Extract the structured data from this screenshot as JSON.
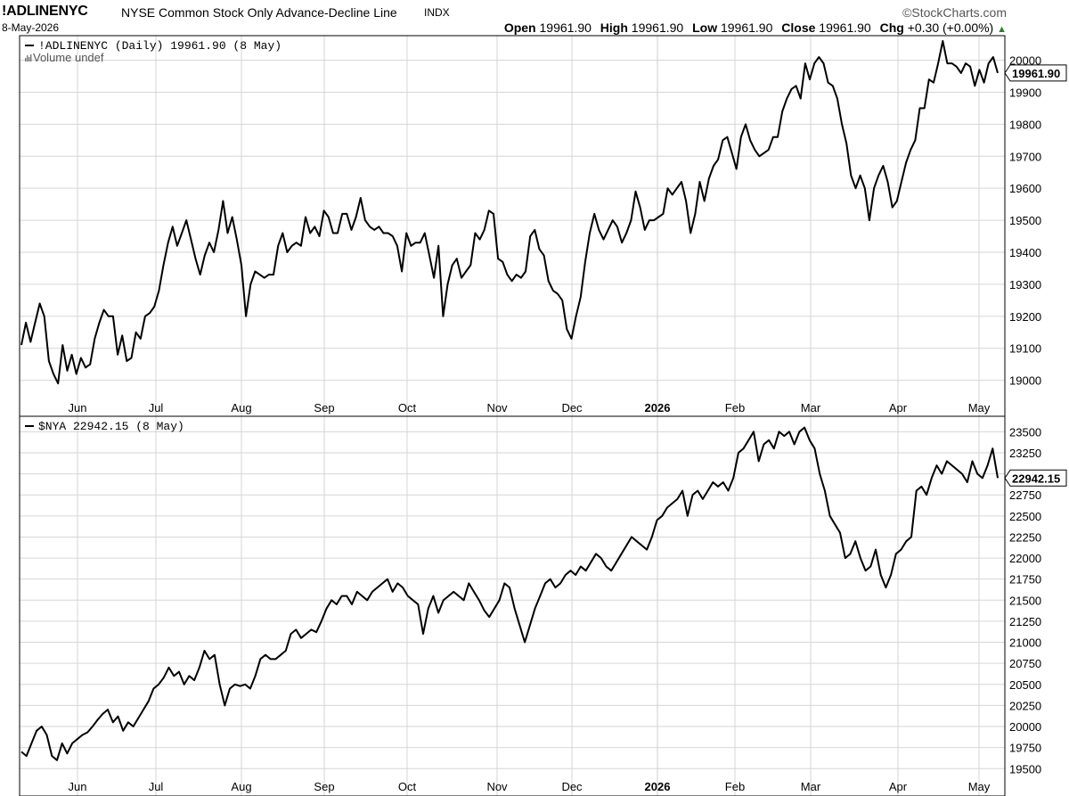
{
  "header": {
    "ticker": "!ADLINENYC",
    "description": "NYSE Common Stock Only Advance-Decline Line",
    "exchange": "INDX",
    "brand": "©StockCharts.com",
    "date": "8-May-2026",
    "open_label": "Open",
    "open": "19961.90",
    "high_label": "High",
    "high": "19961.90",
    "low_label": "Low",
    "low": "19961.90",
    "close_label": "Close",
    "close": "19961.90",
    "chg_label": "Chg",
    "chg": "+0.30 (+0.00%)",
    "chg_arrow": "▲"
  },
  "colors": {
    "line": "#000000",
    "grid": "#d6d6d6",
    "border": "#000000",
    "up": "#2e7d32"
  },
  "chart_data": [
    {
      "type": "line",
      "legend": "!ADLINENYC (Daily) 19961.90 (8 May)",
      "sublegend": "Volume undef",
      "last_value_label": "19961.90",
      "ylim": [
        18960,
        20060
      ],
      "yticks": [
        19000,
        19100,
        19200,
        19300,
        19400,
        19500,
        19600,
        19700,
        19800,
        19900,
        20000
      ],
      "xlabels": [
        "Jun",
        "Jul",
        "Aug",
        "Sep",
        "Oct",
        "Nov",
        "Dec",
        "2026",
        "Feb",
        "Mar",
        "Apr",
        "May"
      ],
      "grid": true,
      "values": [
        19110,
        19180,
        19120,
        19180,
        19240,
        19200,
        19060,
        19020,
        18990,
        19110,
        19030,
        19080,
        19020,
        19070,
        19040,
        19050,
        19130,
        19180,
        19220,
        19200,
        19200,
        19080,
        19140,
        19060,
        19070,
        19150,
        19130,
        19200,
        19210,
        19230,
        19280,
        19360,
        19430,
        19480,
        19420,
        19460,
        19500,
        19440,
        19380,
        19330,
        19390,
        19430,
        19400,
        19470,
        19560,
        19460,
        19510,
        19440,
        19360,
        19200,
        19300,
        19340,
        19330,
        19320,
        19330,
        19330,
        19420,
        19460,
        19400,
        19420,
        19430,
        19420,
        19510,
        19460,
        19480,
        19450,
        19530,
        19510,
        19460,
        19460,
        19520,
        19520,
        19470,
        19510,
        19570,
        19500,
        19480,
        19470,
        19480,
        19460,
        19460,
        19450,
        19420,
        19340,
        19460,
        19420,
        19430,
        19430,
        19460,
        19390,
        19320,
        19420,
        19200,
        19300,
        19360,
        19380,
        19320,
        19340,
        19360,
        19460,
        19440,
        19470,
        19530,
        19520,
        19380,
        19370,
        19330,
        19310,
        19330,
        19320,
        19340,
        19450,
        19470,
        19410,
        19390,
        19310,
        19280,
        19270,
        19250,
        19160,
        19130,
        19200,
        19260,
        19370,
        19460,
        19520,
        19470,
        19440,
        19470,
        19500,
        19480,
        19430,
        19460,
        19500,
        19590,
        19540,
        19470,
        19500,
        19500,
        19510,
        19520,
        19600,
        19580,
        19600,
        19620,
        19560,
        19460,
        19520,
        19620,
        19560,
        19630,
        19670,
        19690,
        19750,
        19760,
        19710,
        19660,
        19760,
        19800,
        19750,
        19720,
        19700,
        19710,
        19720,
        19760,
        19760,
        19840,
        19880,
        19910,
        19920,
        19880,
        19990,
        19940,
        19990,
        20010,
        19990,
        19930,
        19920,
        19880,
        19800,
        19740,
        19640,
        19600,
        19640,
        19600,
        19500,
        19600,
        19640,
        19670,
        19620,
        19540,
        19560,
        19620,
        19680,
        19720,
        19750,
        19850,
        19850,
        19940,
        19930,
        19990,
        20060,
        19990,
        19990,
        19980,
        19960,
        19990,
        19980,
        19920,
        19970,
        19930,
        19990,
        20010,
        19960
      ]
    },
    {
      "type": "line",
      "legend": "$NYA 22942.15 (8 May)",
      "last_value_label": "22942.15",
      "ylim": [
        19450,
        23620
      ],
      "yticks": [
        19500,
        19750,
        20000,
        20250,
        20500,
        20750,
        21000,
        21250,
        21500,
        21750,
        22000,
        22250,
        22500,
        22750,
        23000,
        23250,
        23500
      ],
      "xlabels": [
        "Jun",
        "Jul",
        "Aug",
        "Sep",
        "Oct",
        "Nov",
        "Dec",
        "2026",
        "Feb",
        "Mar",
        "Apr",
        "May"
      ],
      "grid": true,
      "values": [
        19700,
        19650,
        19800,
        19950,
        20000,
        19900,
        19650,
        19600,
        19800,
        19680,
        19800,
        19850,
        19900,
        19930,
        20000,
        20080,
        20150,
        20200,
        20050,
        20120,
        19950,
        20050,
        20000,
        20100,
        20200,
        20300,
        20450,
        20500,
        20580,
        20700,
        20600,
        20650,
        20500,
        20600,
        20550,
        20700,
        20900,
        20800,
        20850,
        20500,
        20250,
        20450,
        20500,
        20480,
        20500,
        20450,
        20600,
        20800,
        20850,
        20800,
        20800,
        20850,
        20900,
        21100,
        21150,
        21050,
        21100,
        21150,
        21120,
        21250,
        21400,
        21500,
        21450,
        21550,
        21550,
        21450,
        21600,
        21550,
        21500,
        21600,
        21650,
        21700,
        21750,
        21600,
        21700,
        21650,
        21550,
        21500,
        21450,
        21100,
        21400,
        21550,
        21350,
        21500,
        21550,
        21600,
        21550,
        21500,
        21700,
        21600,
        21500,
        21380,
        21300,
        21400,
        21500,
        21700,
        21650,
        21400,
        21200,
        21000,
        21200,
        21400,
        21550,
        21700,
        21750,
        21650,
        21700,
        21800,
        21850,
        21800,
        21900,
        21850,
        21950,
        22050,
        22000,
        21900,
        21850,
        21950,
        22050,
        22150,
        22250,
        22200,
        22150,
        22100,
        22250,
        22450,
        22500,
        22600,
        22650,
        22700,
        22800,
        22500,
        22750,
        22800,
        22700,
        22800,
        22900,
        22850,
        22900,
        22800,
        22950,
        23250,
        23300,
        23400,
        23500,
        23150,
        23350,
        23400,
        23300,
        23500,
        23450,
        23500,
        23350,
        23500,
        23550,
        23400,
        23300,
        23000,
        22800,
        22500,
        22400,
        22300,
        22000,
        22050,
        22200,
        22000,
        21850,
        21900,
        22100,
        21800,
        21650,
        21800,
        22050,
        22100,
        22200,
        22250,
        22800,
        22850,
        22750,
        22950,
        23100,
        23000,
        23150,
        23100,
        23050,
        23000,
        22900,
        23150,
        23000,
        22950,
        23100,
        23300,
        22950
      ]
    }
  ]
}
